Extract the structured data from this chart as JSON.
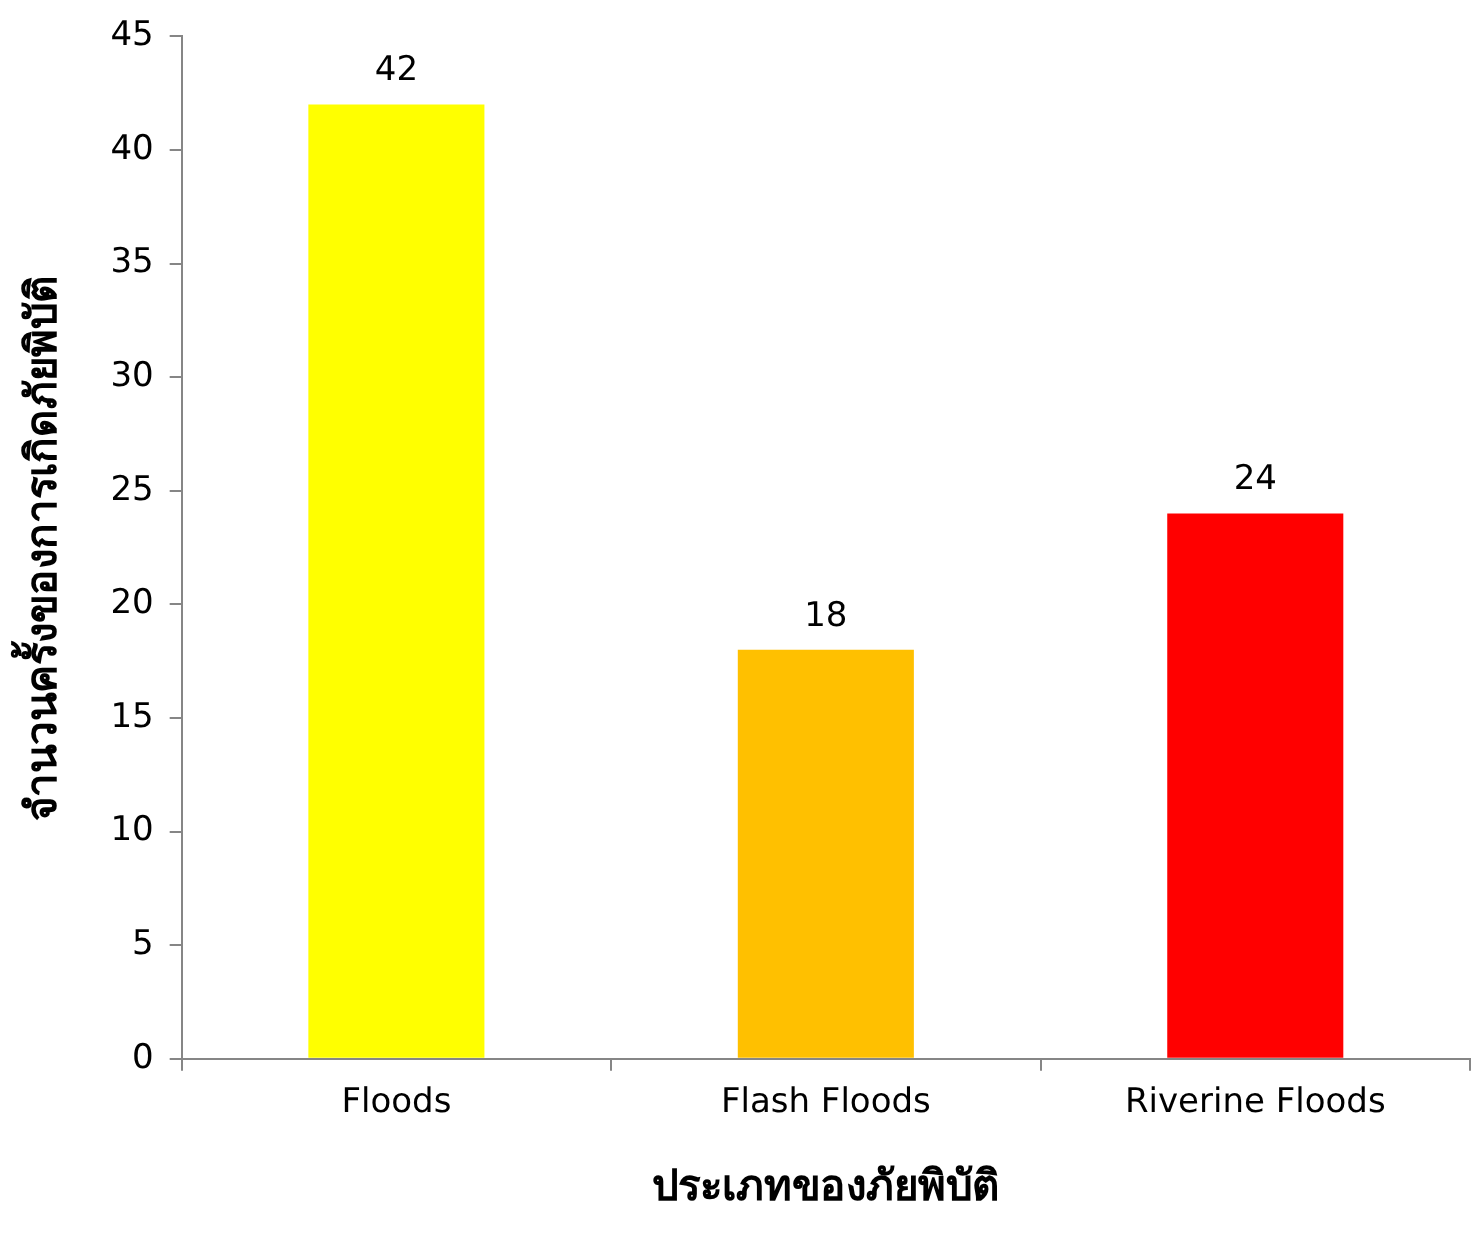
{
  "chart_data": {
    "type": "bar",
    "xlabel": "ประเภทของภัยพิบัติ",
    "ylabel": "จำนวนครั้งของการเกิดภัยพิบัติ",
    "categories": [
      "Floods",
      "Flash Floods",
      "Riverine Floods"
    ],
    "values": [
      42,
      18,
      24
    ],
    "colors": [
      "#ffff00",
      "#ffc000",
      "#ff0000"
    ],
    "ylim": [
      0,
      45
    ],
    "yticks": [
      0,
      5,
      10,
      15,
      20,
      25,
      30,
      35,
      40,
      45
    ],
    "grid": false,
    "legend": false,
    "data_labels": true
  }
}
